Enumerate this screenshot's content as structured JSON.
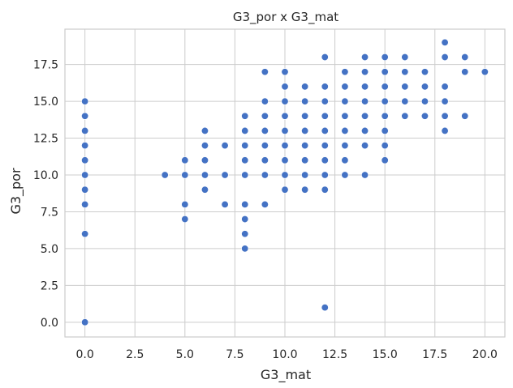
{
  "chart_data": {
    "type": "scatter",
    "title": "G3_por x G3_mat",
    "xlabel": "G3_mat",
    "ylabel": "G3_por",
    "xlim": [
      -1,
      21
    ],
    "ylim": [
      -1,
      19.9
    ],
    "xticks": [
      0,
      2.5,
      5,
      7.5,
      10,
      12.5,
      15,
      17.5,
      20
    ],
    "xtick_labels": [
      "0.0",
      "2.5",
      "5.0",
      "7.5",
      "10.0",
      "12.5",
      "15.0",
      "17.5",
      "20.0"
    ],
    "yticks": [
      0,
      2.5,
      5,
      7.5,
      10,
      12.5,
      15,
      17.5
    ],
    "ytick_labels": [
      "0.0",
      "2.5",
      "5.0",
      "7.5",
      "10.0",
      "12.5",
      "15.0",
      "17.5"
    ],
    "grid": true,
    "marker_color": "#4472c4",
    "points": [
      [
        0,
        0
      ],
      [
        0,
        6
      ],
      [
        0,
        8
      ],
      [
        0,
        9
      ],
      [
        0,
        10
      ],
      [
        0,
        11
      ],
      [
        0,
        12
      ],
      [
        0,
        13
      ],
      [
        0,
        14
      ],
      [
        0,
        15
      ],
      [
        4,
        10
      ],
      [
        5,
        7
      ],
      [
        5,
        8
      ],
      [
        5,
        10
      ],
      [
        5,
        11
      ],
      [
        6,
        9
      ],
      [
        6,
        10
      ],
      [
        6,
        11
      ],
      [
        6,
        12
      ],
      [
        6,
        13
      ],
      [
        7,
        8
      ],
      [
        7,
        10
      ],
      [
        7,
        12
      ],
      [
        8,
        5
      ],
      [
        8,
        6
      ],
      [
        8,
        7
      ],
      [
        8,
        8
      ],
      [
        8,
        10
      ],
      [
        8,
        11
      ],
      [
        8,
        12
      ],
      [
        8,
        13
      ],
      [
        8,
        14
      ],
      [
        9,
        8
      ],
      [
        9,
        10
      ],
      [
        9,
        11
      ],
      [
        9,
        12
      ],
      [
        9,
        13
      ],
      [
        9,
        14
      ],
      [
        9,
        15
      ],
      [
        9,
        17
      ],
      [
        10,
        9
      ],
      [
        10,
        10
      ],
      [
        10,
        11
      ],
      [
        10,
        12
      ],
      [
        10,
        13
      ],
      [
        10,
        14
      ],
      [
        10,
        15
      ],
      [
        10,
        16
      ],
      [
        10,
        17
      ],
      [
        11,
        9
      ],
      [
        11,
        10
      ],
      [
        11,
        11
      ],
      [
        11,
        12
      ],
      [
        11,
        13
      ],
      [
        11,
        14
      ],
      [
        11,
        15
      ],
      [
        11,
        16
      ],
      [
        12,
        1
      ],
      [
        12,
        9
      ],
      [
        12,
        10
      ],
      [
        12,
        11
      ],
      [
        12,
        12
      ],
      [
        12,
        13
      ],
      [
        12,
        14
      ],
      [
        12,
        15
      ],
      [
        12,
        16
      ],
      [
        12,
        18
      ],
      [
        13,
        10
      ],
      [
        13,
        11
      ],
      [
        13,
        12
      ],
      [
        13,
        13
      ],
      [
        13,
        14
      ],
      [
        13,
        15
      ],
      [
        13,
        16
      ],
      [
        13,
        17
      ],
      [
        14,
        10
      ],
      [
        14,
        12
      ],
      [
        14,
        13
      ],
      [
        14,
        14
      ],
      [
        14,
        15
      ],
      [
        14,
        16
      ],
      [
        14,
        17
      ],
      [
        14,
        18
      ],
      [
        15,
        11
      ],
      [
        15,
        12
      ],
      [
        15,
        13
      ],
      [
        15,
        14
      ],
      [
        15,
        15
      ],
      [
        15,
        16
      ],
      [
        15,
        17
      ],
      [
        15,
        18
      ],
      [
        16,
        14
      ],
      [
        16,
        15
      ],
      [
        16,
        16
      ],
      [
        16,
        17
      ],
      [
        16,
        18
      ],
      [
        17,
        14
      ],
      [
        17,
        15
      ],
      [
        17,
        16
      ],
      [
        17,
        17
      ],
      [
        18,
        13
      ],
      [
        18,
        14
      ],
      [
        18,
        15
      ],
      [
        18,
        16
      ],
      [
        18,
        18
      ],
      [
        18,
        19
      ],
      [
        19,
        14
      ],
      [
        19,
        17
      ],
      [
        19,
        18
      ],
      [
        20,
        17
      ]
    ]
  }
}
